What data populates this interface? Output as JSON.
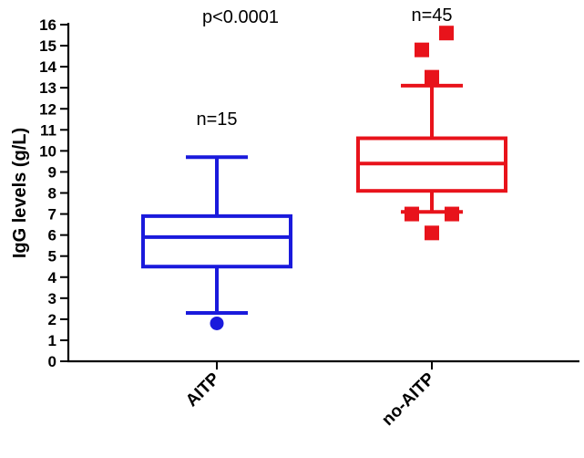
{
  "chart_data": {
    "type": "box",
    "title": "",
    "xlabel": "",
    "ylabel": "IgG levels (g/L)",
    "ylim": [
      0,
      16
    ],
    "yticks": [
      0,
      1,
      2,
      3,
      4,
      5,
      6,
      7,
      8,
      9,
      10,
      11,
      12,
      13,
      14,
      15,
      16
    ],
    "yticks_text": [
      "0",
      "1",
      "2",
      "3",
      "4",
      "5",
      "6",
      "7",
      "8",
      "9",
      "10",
      "11",
      "12",
      "13",
      "14",
      "15",
      "16"
    ],
    "categories": [
      "AITP",
      "no-AITP"
    ],
    "series": [
      {
        "category": "AITP",
        "color": "#1a1adc",
        "marker": "circle",
        "whisker_low": 2.3,
        "q1": 4.5,
        "median": 5.9,
        "q3": 6.9,
        "whisker_high": 9.7,
        "outliers": [
          1.8
        ],
        "n_label": "n=15"
      },
      {
        "category": "no-AITP",
        "color": "#e8131b",
        "marker": "square",
        "whisker_low": 7.1,
        "q1": 8.1,
        "median": 9.4,
        "q3": 10.6,
        "whisker_high": 13.1,
        "outliers": [
          15.6,
          14.8,
          13.5,
          7.0,
          7.0,
          6.1
        ],
        "n_label": "n=45"
      }
    ],
    "annotations": {
      "p_value": "p<0.0001"
    },
    "grid": false,
    "legend": "none"
  }
}
